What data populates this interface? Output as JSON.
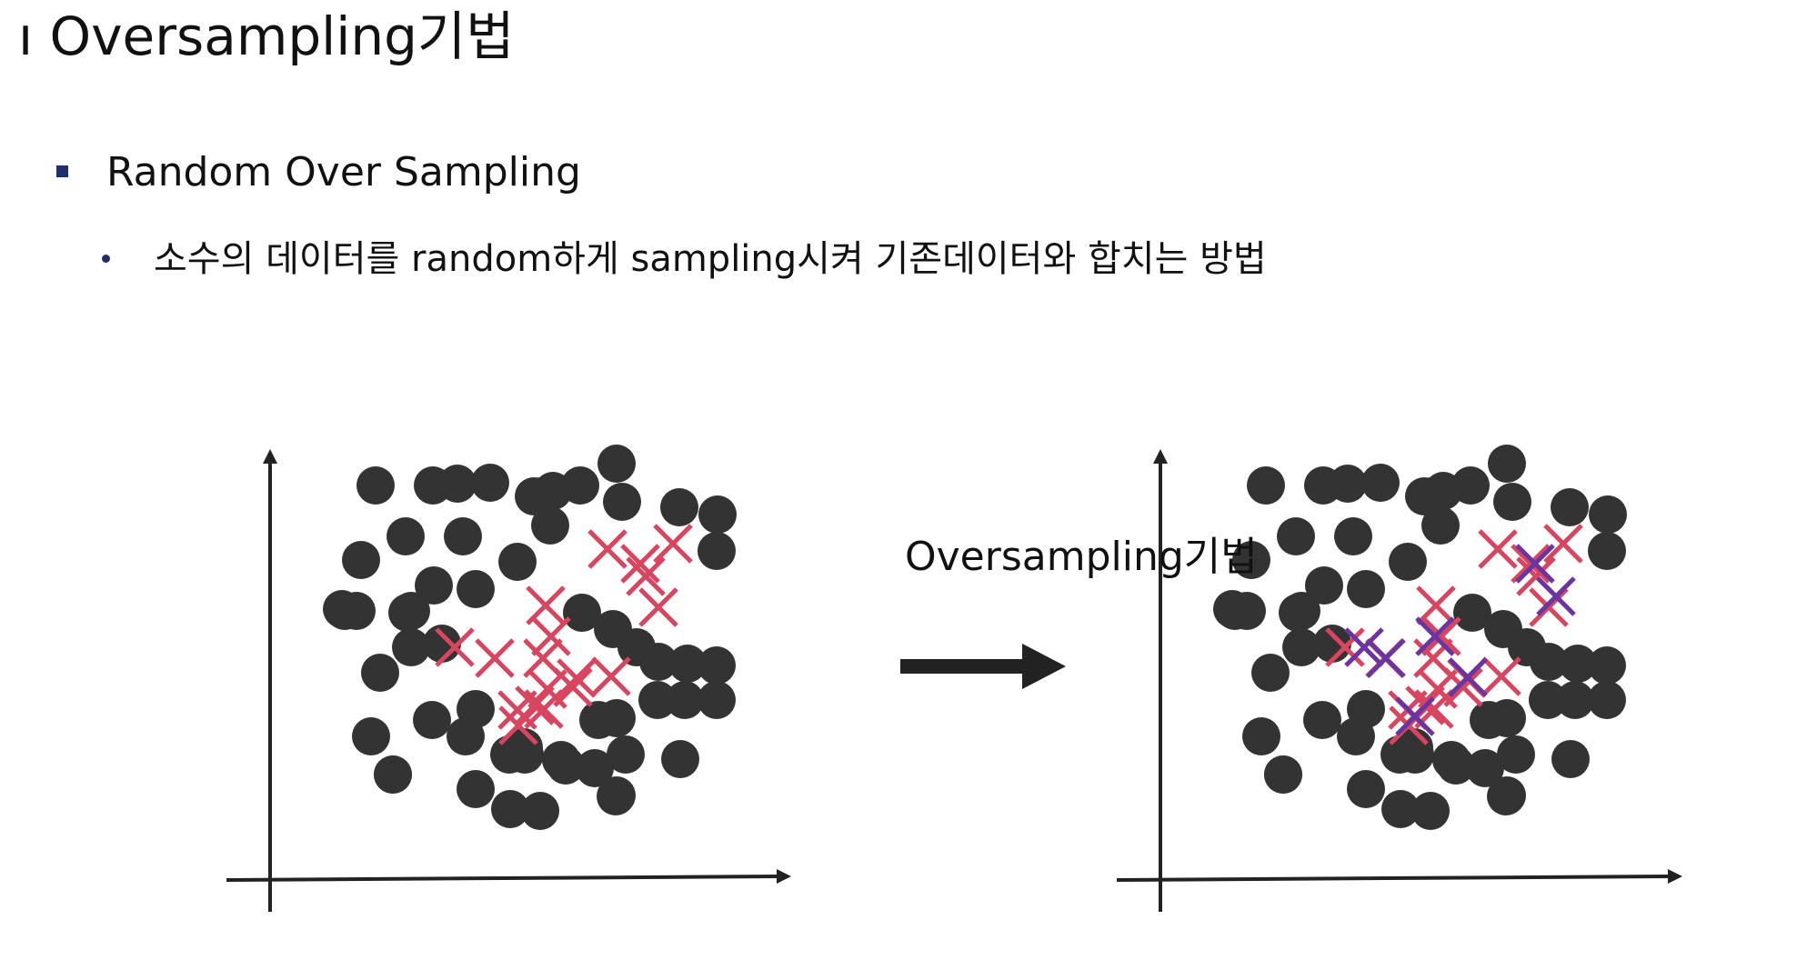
{
  "slide": {
    "title": "ı Oversampling기법",
    "bullet_level1": "Random Over Sampling",
    "bullet_level2": "소수의 데이터를 random하게 sampling시켜 기존데이터와 합치는 방법",
    "arrow_label": "Oversampling기법"
  },
  "colors": {
    "majority_point": "#333333",
    "minority_marker": "#d9455f",
    "oversampled_marker": "#6a35a0",
    "axis": "#222222",
    "bullet": "#1f2f6b"
  },
  "icons": [
    "square-bullet-icon",
    "dot-bullet-icon",
    "right-arrow-icon"
  ]
}
